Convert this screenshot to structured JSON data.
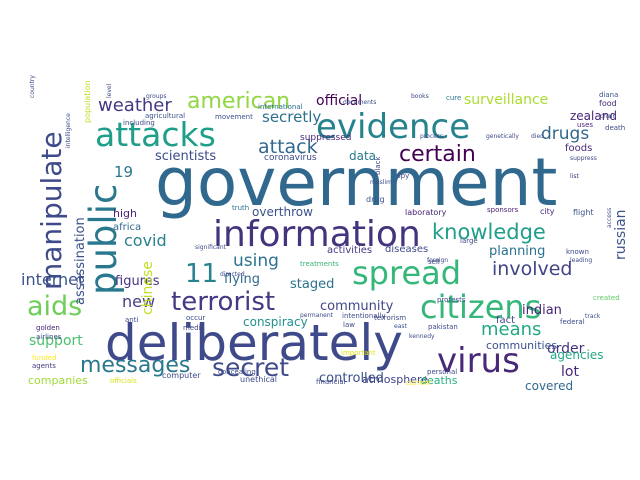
{
  "word_cloud": {
    "words": [
      {
        "text": "government",
        "color": "#31688e"
      },
      {
        "text": "deliberately",
        "color": "#3e4a89"
      },
      {
        "text": "information",
        "color": "#46337e"
      },
      {
        "text": "evidence",
        "color": "#26828e"
      },
      {
        "text": "spread",
        "color": "#35b779"
      },
      {
        "text": "attacks",
        "color": "#1f9e89"
      },
      {
        "text": "citizens",
        "color": "#35b779"
      },
      {
        "text": "public",
        "color": "#2a788e"
      },
      {
        "text": "virus",
        "color": "#482878"
      },
      {
        "text": "manipulate",
        "color": "#3e4a89"
      },
      {
        "text": "terrorist",
        "color": "#443983"
      },
      {
        "text": "aids",
        "color": "#6ece58"
      },
      {
        "text": "secret",
        "color": "#3e4a89"
      },
      {
        "text": "messages",
        "color": "#2a788e"
      },
      {
        "text": "knowledge",
        "color": "#1f9e89"
      },
      {
        "text": "american",
        "color": "#90d743"
      },
      {
        "text": "11",
        "color": "#26828e"
      },
      {
        "text": "weather",
        "color": "#443983"
      },
      {
        "text": "certain",
        "color": "#440154"
      },
      {
        "text": "involved",
        "color": "#414487"
      },
      {
        "text": "drugs",
        "color": "#31688e"
      },
      {
        "text": "attack",
        "color": "#31688e"
      },
      {
        "text": "internet",
        "color": "#3b528b"
      },
      {
        "text": "covid",
        "color": "#26828e"
      },
      {
        "text": "means",
        "color": "#22a884"
      },
      {
        "text": "19",
        "color": "#2a788e"
      },
      {
        "text": "using",
        "color": "#2c728e"
      },
      {
        "text": "new",
        "color": "#433e85"
      },
      {
        "text": "official",
        "color": "#440154"
      },
      {
        "text": "secretly",
        "color": "#2c728e"
      },
      {
        "text": "surveillance",
        "color": "#addc30"
      },
      {
        "text": "scientists",
        "color": "#3e4a89"
      },
      {
        "text": "assassination",
        "color": "#3b528b"
      },
      {
        "text": "figures",
        "color": "#46337e"
      },
      {
        "text": "flying",
        "color": "#31688e"
      },
      {
        "text": "staged",
        "color": "#2c728e"
      },
      {
        "text": "community",
        "color": "#404688"
      },
      {
        "text": "russian",
        "color": "#3b528b"
      },
      {
        "text": "planning",
        "color": "#2c728e"
      },
      {
        "text": "indian",
        "color": "#482475"
      },
      {
        "text": "order",
        "color": "#46327e"
      },
      {
        "text": "support",
        "color": "#4ac16d"
      },
      {
        "text": "controlled",
        "color": "#3b528b"
      },
      {
        "text": "lot",
        "color": "#482878"
      },
      {
        "text": "covered",
        "color": "#31688e"
      },
      {
        "text": "agencies",
        "color": "#22a884"
      },
      {
        "text": "conspiracy",
        "color": "#21918c"
      },
      {
        "text": "overthrow",
        "color": "#3b528b"
      },
      {
        "text": "data",
        "color": "#2a788e"
      },
      {
        "text": "high",
        "color": "#482475"
      },
      {
        "text": "zealand",
        "color": "#482475"
      },
      {
        "text": "chinese",
        "color": "#c2df23"
      },
      {
        "text": "companies",
        "color": "#a2da37"
      },
      {
        "text": "atmosphere",
        "color": "#414487"
      },
      {
        "text": "deaths",
        "color": "#29af7f"
      },
      {
        "text": "communities",
        "color": "#3b528b"
      },
      {
        "text": "activities",
        "color": "#453781"
      },
      {
        "text": "diseases",
        "color": "#3e4a89"
      },
      {
        "text": "fact",
        "color": "#3e4a89"
      },
      {
        "text": "coronavirus",
        "color": "#3e4a89"
      },
      {
        "text": "africa",
        "color": "#31688e"
      },
      {
        "text": "foods",
        "color": "#482878"
      },
      {
        "text": "suppressed",
        "color": "#482878"
      },
      {
        "text": "international",
        "color": "#2c728e"
      },
      {
        "text": "agricultural",
        "color": "#3b528b"
      },
      {
        "text": "movement",
        "color": "#3b528b"
      },
      {
        "text": "including",
        "color": "#3e4a89"
      },
      {
        "text": "population",
        "color": "#bddf26"
      },
      {
        "text": "laboratory",
        "color": "#482475"
      },
      {
        "text": "truth",
        "color": "#2c728e"
      },
      {
        "text": "drug",
        "color": "#3b528b"
      },
      {
        "text": "pakistan",
        "color": "#3e4a89"
      },
      {
        "text": "golden",
        "color": "#482475"
      },
      {
        "text": "airlines",
        "color": "#3e4a89"
      },
      {
        "text": "funded",
        "color": "#fde725"
      },
      {
        "text": "agents",
        "color": "#453781"
      },
      {
        "text": "computer",
        "color": "#3e4a89"
      },
      {
        "text": "officials",
        "color": "#d8e219"
      },
      {
        "text": "unethical",
        "color": "#3e4a89"
      },
      {
        "text": "financial",
        "color": "#3e4a89"
      },
      {
        "text": "personal",
        "color": "#3e4a89"
      },
      {
        "text": "federal",
        "color": "#3e4a89"
      },
      {
        "text": "created",
        "color": "#5ec962"
      },
      {
        "text": "city",
        "color": "#482878"
      },
      {
        "text": "flight",
        "color": "#3b528b"
      },
      {
        "text": "food",
        "color": "#482878"
      },
      {
        "text": "diana",
        "color": "#3b528b"
      },
      {
        "text": "cure",
        "color": "#2a788e"
      },
      {
        "text": "death",
        "color": "#3e4a89"
      },
      {
        "text": "chain",
        "color": "#3e4a89"
      },
      {
        "text": "uses",
        "color": "#482475"
      },
      {
        "text": "list",
        "color": "#482878"
      },
      {
        "text": "known",
        "color": "#3e4a89"
      },
      {
        "text": "leading",
        "color": "#3e4a89"
      },
      {
        "text": "track",
        "color": "#3e4a89"
      },
      {
        "text": "large",
        "color": "#3e4a89"
      },
      {
        "text": "sponsors",
        "color": "#482475"
      },
      {
        "text": "protests",
        "color": "#3e4a89"
      },
      {
        "text": "intentionally",
        "color": "#3e4a89"
      },
      {
        "text": "law",
        "color": "#3e4a89"
      },
      {
        "text": "terrorism",
        "color": "#3e4a89"
      },
      {
        "text": "concealing",
        "color": "#3e4a89"
      },
      {
        "text": "treatments",
        "color": "#35b779"
      },
      {
        "text": "occur",
        "color": "#3e4a89"
      },
      {
        "text": "anti",
        "color": "#3e4a89"
      },
      {
        "text": "media",
        "color": "#3e4a89"
      },
      {
        "text": "black",
        "color": "#3e4a89"
      },
      {
        "text": "sell",
        "color": "#3e4a89"
      },
      {
        "text": "spy",
        "color": "#3e4a89"
      },
      {
        "text": "current",
        "color": "#fde725"
      },
      {
        "text": "important",
        "color": "#e5e419"
      },
      {
        "text": "books",
        "color": "#3e4a89"
      },
      {
        "text": "foreign",
        "color": "#3e4a89"
      },
      {
        "text": "muslim",
        "color": "#3e4a89"
      },
      {
        "text": "country",
        "color": "#3e4a89"
      },
      {
        "text": "groups",
        "color": "#3e4a89"
      },
      {
        "text": "level",
        "color": "#3e4a89"
      },
      {
        "text": "genetically",
        "color": "#3e4a89"
      },
      {
        "text": "process",
        "color": "#3e4a89"
      },
      {
        "text": "documents",
        "color": "#3e4a89"
      },
      {
        "text": "intelligence",
        "color": "#3e4a89"
      },
      {
        "text": "significant",
        "color": "#3e4a89"
      },
      {
        "text": "directed",
        "color": "#3e4a89"
      },
      {
        "text": "permanent",
        "color": "#3e4a89"
      },
      {
        "text": "east",
        "color": "#3e4a89"
      },
      {
        "text": "kennedy",
        "color": "#3e4a89"
      },
      {
        "text": "died",
        "color": "#3e4a89"
      },
      {
        "text": "access",
        "color": "#3e4a89"
      },
      {
        "text": "suppress",
        "color": "#3e4a89"
      },
      {
        "text": "russia",
        "color": "#3e4a89"
      }
    ]
  }
}
